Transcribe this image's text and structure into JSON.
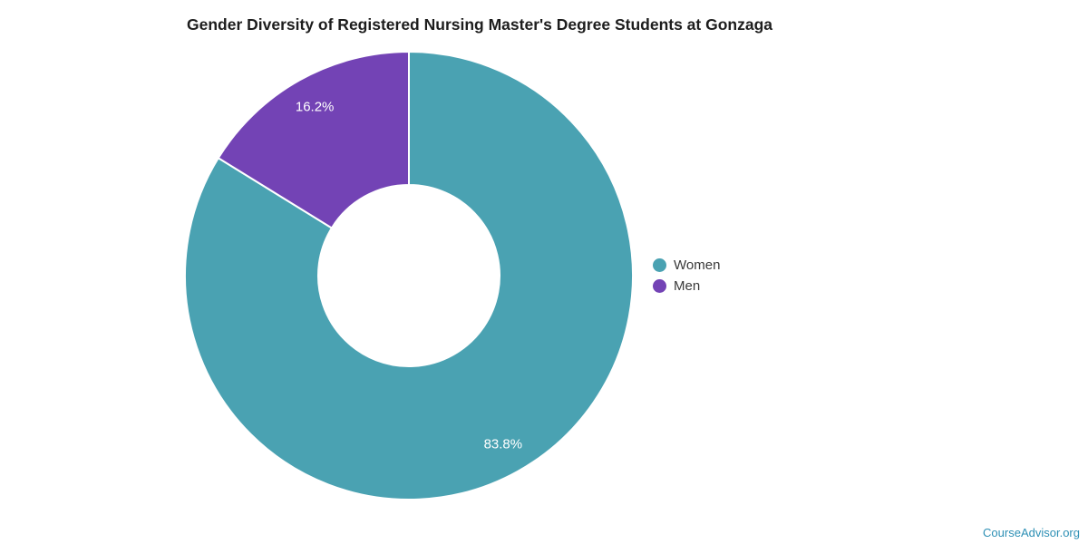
{
  "title": "Gender Diversity of Registered Nursing Master's Degree Students at Gonzaga",
  "legend": {
    "items": [
      {
        "label": "Women",
        "color": "#4aa2b2"
      },
      {
        "label": "Men",
        "color": "#7343b5"
      }
    ]
  },
  "footer": {
    "link_text": "CourseAdvisor.org",
    "link_color": "#2e90b5"
  },
  "chart_data": {
    "type": "pie",
    "subtype": "donut",
    "title": "Gender Diversity of Registered Nursing Master's Degree Students at Gonzaga",
    "labels": [
      "Women",
      "Men"
    ],
    "values": [
      83.8,
      16.2
    ],
    "value_labels": [
      "83.8%",
      "16.2%"
    ],
    "colors": [
      "#4aa2b2",
      "#7343b5"
    ],
    "slice_label_color": "#ffffff",
    "start_angle_deg": 0,
    "direction": "clockwise",
    "inner_radius_ratio": 0.405,
    "legend_position": "right",
    "slice_border_color": "#ffffff"
  }
}
